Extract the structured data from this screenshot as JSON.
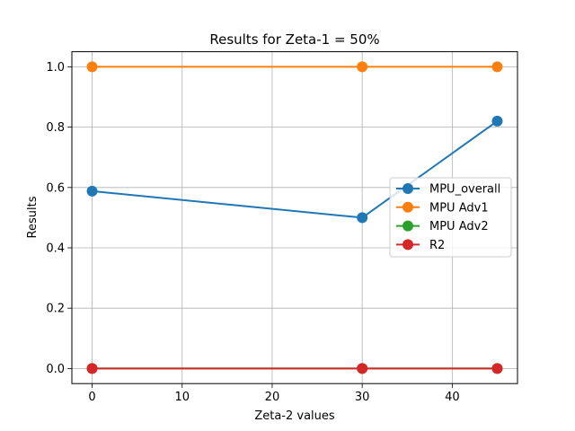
{
  "chart_data": {
    "type": "line",
    "title": "Results for Zeta-1 = 50%",
    "xlabel": "Zeta-2 values",
    "ylabel": "Results",
    "xlim": [
      -2.25,
      47.25
    ],
    "ylim": [
      -0.05,
      1.05
    ],
    "x_ticks": [
      0,
      10,
      20,
      30,
      40
    ],
    "y_ticks": [
      0.0,
      0.2,
      0.4,
      0.6,
      0.8,
      1.0
    ],
    "grid": true,
    "legend_position": "center-right",
    "x": [
      0,
      30,
      45
    ],
    "series": [
      {
        "name": "MPU_overall",
        "color": "#1f77b4",
        "values": [
          0.588,
          0.5,
          0.82
        ]
      },
      {
        "name": "MPU Adv1",
        "color": "#ff7f0e",
        "values": [
          1.0,
          1.0,
          1.0
        ]
      },
      {
        "name": "MPU Adv2",
        "color": "#2ca02c",
        "values": [
          0.0,
          0.0,
          0.0
        ]
      },
      {
        "name": "R2",
        "color": "#d62728",
        "values": [
          0.0,
          0.0,
          0.0
        ]
      }
    ]
  }
}
